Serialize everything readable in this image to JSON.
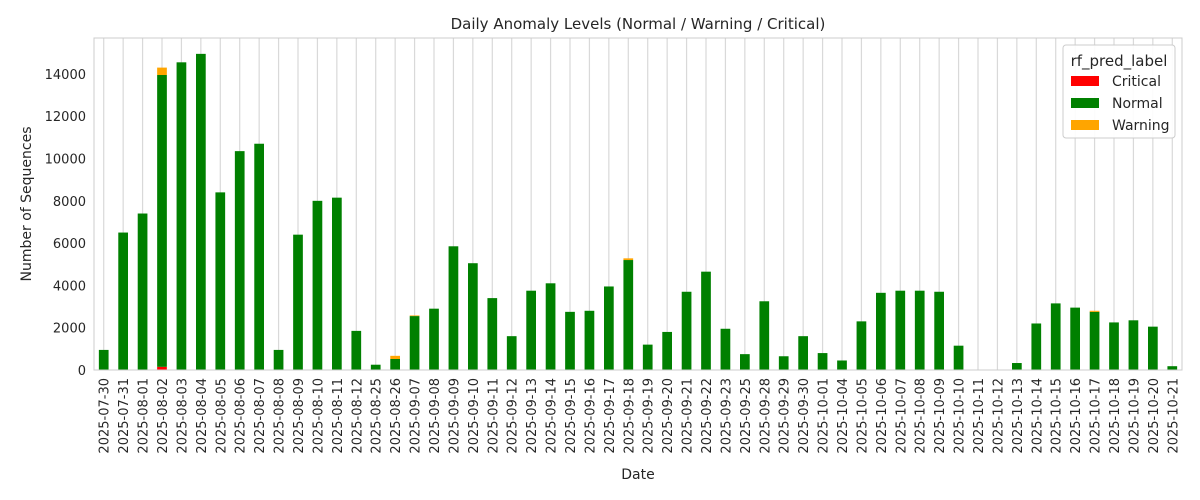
{
  "chart_data": {
    "type": "bar",
    "stacked": true,
    "title": "Daily Anomaly Levels (Normal / Warning / Critical)",
    "xlabel": "Date",
    "ylabel": "Number of Sequences",
    "ylim": [
      0,
      15700
    ],
    "yticks": [
      0,
      2000,
      4000,
      6000,
      8000,
      10000,
      12000,
      14000
    ],
    "grid": "vertical",
    "legend": {
      "title": "rf_pred_label",
      "placement": "top-right"
    },
    "categories": [
      "2025-07-30",
      "2025-07-31",
      "2025-08-01",
      "2025-08-02",
      "2025-08-03",
      "2025-08-04",
      "2025-08-05",
      "2025-08-06",
      "2025-08-07",
      "2025-08-08",
      "2025-08-09",
      "2025-08-10",
      "2025-08-11",
      "2025-08-12",
      "2025-08-25",
      "2025-08-26",
      "2025-09-07",
      "2025-09-08",
      "2025-09-09",
      "2025-09-10",
      "2025-09-11",
      "2025-09-12",
      "2025-09-13",
      "2025-09-14",
      "2025-09-15",
      "2025-09-16",
      "2025-09-17",
      "2025-09-18",
      "2025-09-19",
      "2025-09-20",
      "2025-09-21",
      "2025-09-22",
      "2025-09-23",
      "2025-09-25",
      "2025-09-28",
      "2025-09-29",
      "2025-09-30",
      "2025-10-01",
      "2025-10-04",
      "2025-10-05",
      "2025-10-06",
      "2025-10-07",
      "2025-10-08",
      "2025-10-09",
      "2025-10-10",
      "2025-10-11",
      "2025-10-12",
      "2025-10-13",
      "2025-10-14",
      "2025-10-15",
      "2025-10-16",
      "2025-10-17",
      "2025-10-18",
      "2025-10-19",
      "2025-10-20",
      "2025-10-21"
    ],
    "series": [
      {
        "name": "Critical",
        "color": "#ff0000",
        "values": [
          0,
          0,
          0,
          150,
          0,
          0,
          0,
          0,
          0,
          0,
          0,
          0,
          0,
          0,
          0,
          0,
          0,
          0,
          0,
          0,
          0,
          0,
          0,
          0,
          0,
          0,
          0,
          0,
          0,
          0,
          0,
          0,
          0,
          0,
          0,
          0,
          0,
          0,
          0,
          0,
          0,
          0,
          0,
          0,
          0,
          0,
          0,
          0,
          0,
          0,
          0,
          0,
          0,
          0,
          0,
          0
        ]
      },
      {
        "name": "Normal",
        "color": "#008000",
        "values": [
          950,
          6500,
          7400,
          13800,
          14550,
          14950,
          8400,
          10350,
          10700,
          950,
          6400,
          8000,
          8150,
          1850,
          250,
          520,
          2550,
          2900,
          5850,
          5050,
          3400,
          1600,
          3750,
          4100,
          2750,
          2800,
          3950,
          5200,
          1200,
          1800,
          3700,
          4650,
          1950,
          750,
          3250,
          650,
          1600,
          800,
          450,
          2300,
          3650,
          3750,
          3750,
          3700,
          1150,
          20,
          20,
          330,
          2200,
          3150,
          2950,
          2750,
          2250,
          2350,
          2050,
          180
        ]
      },
      {
        "name": "Warning",
        "color": "#ffa500",
        "values": [
          0,
          0,
          0,
          350,
          0,
          0,
          0,
          0,
          0,
          0,
          0,
          0,
          0,
          0,
          0,
          150,
          30,
          0,
          0,
          0,
          0,
          0,
          0,
          0,
          0,
          0,
          0,
          80,
          0,
          0,
          0,
          0,
          0,
          0,
          0,
          0,
          0,
          0,
          0,
          0,
          0,
          0,
          0,
          0,
          0,
          0,
          0,
          0,
          0,
          0,
          0,
          50,
          0,
          0,
          0,
          0
        ]
      }
    ]
  }
}
